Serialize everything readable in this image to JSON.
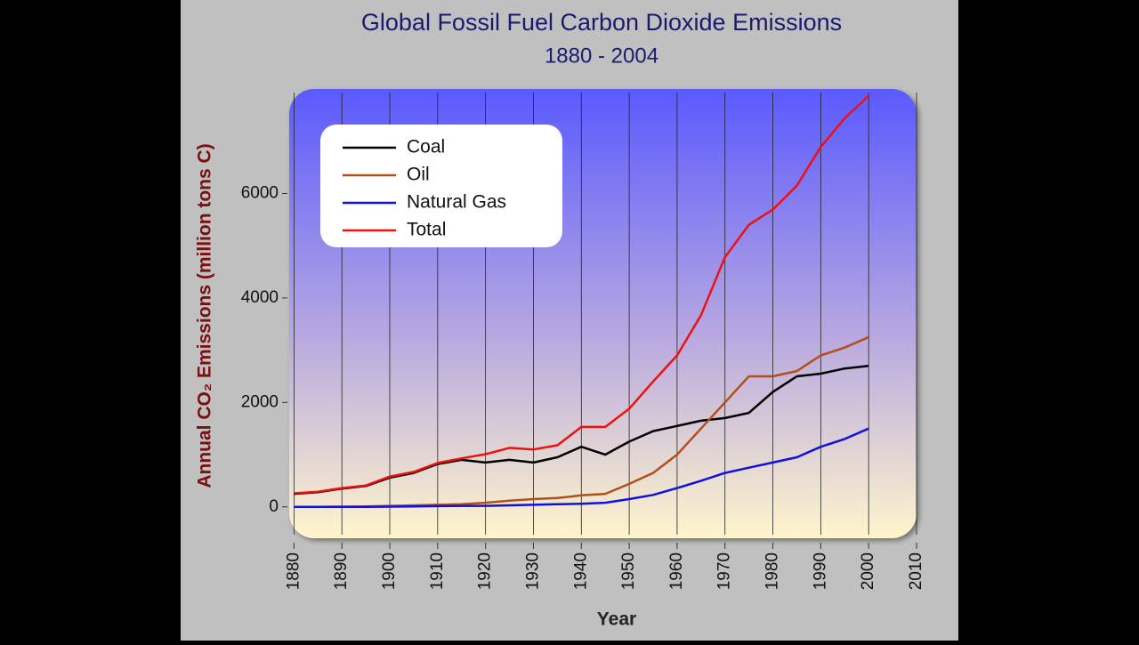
{
  "chart_data": {
    "type": "line",
    "title": "Global Fossil Fuel Carbon Dioxide Emissions",
    "subtitle": "1880 - 2004",
    "x_label": "Year",
    "y_label": "Annual CO₂ Emissions (million tons C)",
    "x": [
      1880,
      1885,
      1890,
      1895,
      1900,
      1905,
      1910,
      1915,
      1920,
      1925,
      1930,
      1935,
      1940,
      1945,
      1950,
      1955,
      1960,
      1965,
      1970,
      1975,
      1980,
      1985,
      1990,
      1995,
      2000
    ],
    "series": [
      {
        "name": "Coal",
        "color": "#000000",
        "values": [
          250,
          280,
          350,
          400,
          560,
          650,
          820,
          900,
          850,
          900,
          850,
          950,
          1150,
          1000,
          1250,
          1450,
          1550,
          1650,
          1700,
          1800,
          2200,
          2500,
          2550,
          2650,
          2700
        ]
      },
      {
        "name": "Oil",
        "color": "#b0501a",
        "values": [
          0,
          0,
          5,
          10,
          20,
          30,
          40,
          50,
          80,
          120,
          150,
          170,
          220,
          250,
          440,
          650,
          1000,
          1500,
          2000,
          2500,
          2500,
          2600,
          2900,
          3050,
          3250
        ]
      },
      {
        "name": "Natural Gas",
        "color": "#1010e0",
        "values": [
          0,
          0,
          0,
          0,
          5,
          10,
          15,
          20,
          20,
          30,
          40,
          50,
          60,
          80,
          150,
          230,
          360,
          500,
          650,
          750,
          850,
          950,
          1150,
          1300,
          1500
        ]
      },
      {
        "name": "Total",
        "color": "#ee1111",
        "values": [
          260,
          290,
          360,
          410,
          580,
          670,
          840,
          930,
          1010,
          1130,
          1100,
          1180,
          1530,
          1530,
          1880,
          2400,
          2900,
          3670,
          4780,
          5400,
          5690,
          6150,
          6890,
          7440,
          7870
        ]
      }
    ],
    "xlim": [
      1879,
      2010
    ],
    "xticks": [
      1880,
      1890,
      1900,
      1910,
      1920,
      1930,
      1940,
      1950,
      1960,
      1970,
      1980,
      1990,
      2000,
      2010
    ],
    "ylim": [
      -600,
      8000
    ],
    "yticks": [
      0,
      2000,
      4000,
      6000
    ],
    "grid": true,
    "legend": "upper left"
  }
}
